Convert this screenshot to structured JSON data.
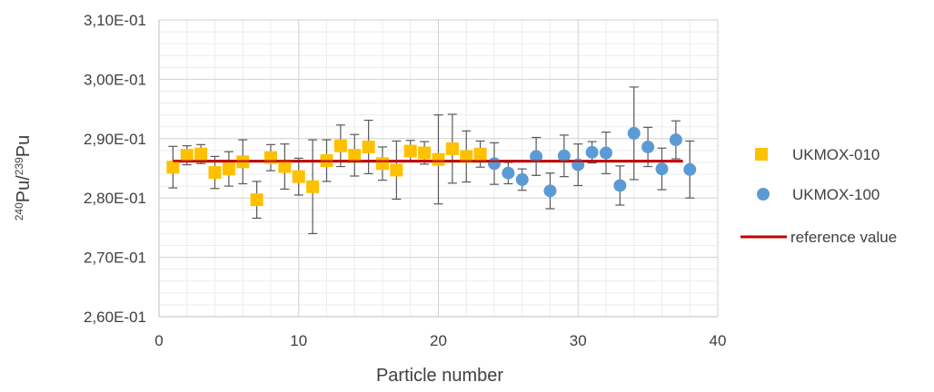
{
  "chart_data": {
    "type": "scatter",
    "xlabel": "Particle number",
    "ylabel": {
      "iso1": "240",
      "el1": "Pu/",
      "iso2": "239",
      "el2": "Pu"
    },
    "xlim": [
      0,
      40
    ],
    "ylim": [
      0.26,
      0.31
    ],
    "x_ticks": [
      0,
      10,
      20,
      30,
      40
    ],
    "x_tick_labels": [
      "0",
      "10",
      "20",
      "30",
      "40"
    ],
    "y_ticks": [
      0.26,
      0.27,
      0.28,
      0.29,
      0.3,
      0.31
    ],
    "y_tick_labels": [
      "2,60E-01",
      "2,70E-01",
      "2,80E-01",
      "2,90E-01",
      "3,00E-01",
      "3,10E-01"
    ],
    "grid": true,
    "legend_position": "right",
    "series": [
      {
        "name": "UKMOX-010",
        "marker": "square",
        "color": "#FFC000",
        "points": [
          {
            "x": 1,
            "y": 0.2852,
            "err": 0.0035
          },
          {
            "x": 2,
            "y": 0.2872,
            "err": 0.0016
          },
          {
            "x": 3,
            "y": 0.2874,
            "err": 0.0016
          },
          {
            "x": 4,
            "y": 0.2843,
            "err": 0.0027
          },
          {
            "x": 5,
            "y": 0.2849,
            "err": 0.0029
          },
          {
            "x": 6,
            "y": 0.2861,
            "err": 0.0037
          },
          {
            "x": 7,
            "y": 0.2797,
            "err": 0.0031
          },
          {
            "x": 8,
            "y": 0.2868,
            "err": 0.0022
          },
          {
            "x": 9,
            "y": 0.2853,
            "err": 0.0038
          },
          {
            "x": 10,
            "y": 0.2836,
            "err": 0.0031
          },
          {
            "x": 11,
            "y": 0.2819,
            "err": 0.0079
          },
          {
            "x": 12,
            "y": 0.2863,
            "err": 0.0035
          },
          {
            "x": 13,
            "y": 0.2888,
            "err": 0.0035
          },
          {
            "x": 14,
            "y": 0.2872,
            "err": 0.0035
          },
          {
            "x": 15,
            "y": 0.2886,
            "err": 0.0045
          },
          {
            "x": 16,
            "y": 0.2858,
            "err": 0.0028
          },
          {
            "x": 17,
            "y": 0.2847,
            "err": 0.0049
          },
          {
            "x": 18,
            "y": 0.2879,
            "err": 0.0018
          },
          {
            "x": 19,
            "y": 0.2876,
            "err": 0.0019
          },
          {
            "x": 20,
            "y": 0.2865,
            "err": 0.0075
          },
          {
            "x": 21,
            "y": 0.2883,
            "err": 0.0058
          },
          {
            "x": 22,
            "y": 0.287,
            "err": 0.0043
          },
          {
            "x": 23,
            "y": 0.2874,
            "err": 0.0022
          }
        ]
      },
      {
        "name": "UKMOX-100",
        "marker": "circle",
        "color": "#5B9BD5",
        "points": [
          {
            "x": 24,
            "y": 0.2858,
            "err": 0.0035
          },
          {
            "x": 25,
            "y": 0.2842,
            "err": 0.0018
          },
          {
            "x": 26,
            "y": 0.2831,
            "err": 0.0018
          },
          {
            "x": 27,
            "y": 0.287,
            "err": 0.0032
          },
          {
            "x": 28,
            "y": 0.2812,
            "err": 0.003
          },
          {
            "x": 29,
            "y": 0.2871,
            "err": 0.0035
          },
          {
            "x": 30,
            "y": 0.2856,
            "err": 0.0035
          },
          {
            "x": 31,
            "y": 0.2877,
            "err": 0.0018
          },
          {
            "x": 32,
            "y": 0.2876,
            "err": 0.0035
          },
          {
            "x": 33,
            "y": 0.2821,
            "err": 0.0033
          },
          {
            "x": 34,
            "y": 0.2909,
            "err": 0.0078
          },
          {
            "x": 35,
            "y": 0.2886,
            "err": 0.0033
          },
          {
            "x": 36,
            "y": 0.2849,
            "err": 0.0035
          },
          {
            "x": 37,
            "y": 0.2898,
            "err": 0.0032
          },
          {
            "x": 38,
            "y": 0.2848,
            "err": 0.0048
          }
        ]
      },
      {
        "name": "reference value",
        "marker": "line",
        "color": "#C00000",
        "x": [
          1,
          37.5
        ],
        "y": [
          0.2862,
          0.2862
        ]
      }
    ]
  }
}
